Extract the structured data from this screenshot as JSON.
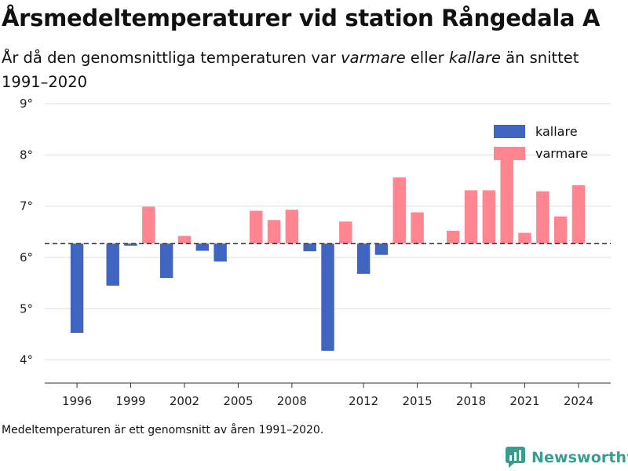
{
  "title": "Årsmedeltemperaturer vid station Rångedala A",
  "subtitle": {
    "part1": "År då den genomsnittliga temperaturen var ",
    "word_warm": "varmare",
    "part2": " eller ",
    "word_cold": "kallare",
    "part3": " än snittet 1991–2020"
  },
  "footnote": "Medeltemperaturen är ett genomsnitt av åren 1991–2020.",
  "brand": {
    "name": "Newsworthy",
    "color": "#3a9c8f"
  },
  "colors": {
    "kallare": "#4065c0",
    "varmare": "#ff8591",
    "grid": "#dddddd",
    "reference": "#333333"
  },
  "chart_data": {
    "type": "bar",
    "reference_value": 6.27,
    "ylim": [
      3.55,
      9.0
    ],
    "xlim": [
      1994.2,
      2025.8
    ],
    "yticks": [
      4,
      5,
      6,
      7,
      8,
      9
    ],
    "ytick_labels": [
      "4°",
      "5°",
      "6°",
      "7°",
      "8°",
      "9°"
    ],
    "xticks": [
      1996,
      1999,
      2002,
      2005,
      2008,
      2012,
      2015,
      2018,
      2021,
      2024
    ],
    "xtick_labels": [
      "1996",
      "1999",
      "2002",
      "2005",
      "2008",
      "2012",
      "2015",
      "2018",
      "2021",
      "2024"
    ],
    "legend": {
      "position": "top-right",
      "entries": [
        {
          "key": "kallare",
          "label": "kallare"
        },
        {
          "key": "varmare",
          "label": "varmare"
        }
      ]
    },
    "series": [
      {
        "name": "kallare",
        "x": [
          1996,
          1998,
          1999,
          2001,
          2003,
          2004,
          2009,
          2010,
          2012,
          2013
        ],
        "values": [
          4.53,
          5.45,
          6.23,
          5.6,
          6.13,
          5.92,
          6.12,
          4.18,
          5.68,
          6.05
        ]
      },
      {
        "name": "varmare",
        "x": [
          2000,
          2002,
          2006,
          2007,
          2008,
          2011,
          2014,
          2015,
          2017,
          2018,
          2019,
          2020,
          2021,
          2022,
          2023,
          2024
        ],
        "values": [
          6.99,
          6.42,
          6.91,
          6.73,
          6.93,
          6.7,
          7.56,
          6.88,
          6.52,
          7.31,
          7.31,
          7.91,
          6.48,
          7.29,
          6.8,
          7.41
        ]
      }
    ]
  }
}
